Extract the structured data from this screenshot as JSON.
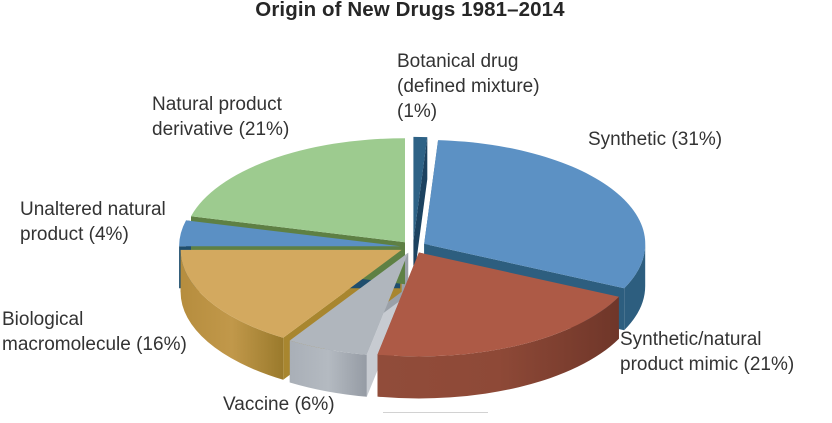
{
  "title": {
    "text": "Origin of New Drugs 1981–2014"
  },
  "chart_data": {
    "type": "pie",
    "title": "Origin of New Drugs 1981–2014",
    "style": "3d-exploded",
    "values_unit": "%",
    "total": 100,
    "start_angle_deg": 0,
    "direction": "clockwise",
    "legend_position": "callout-labels",
    "slices": [
      {
        "key": "botanical",
        "label": "Botanical drug (defined mixture)",
        "value": 1,
        "color": "#2e6286",
        "side": "#16354f",
        "edge_start": "#16354f",
        "edge_end": "#1c4260"
      },
      {
        "key": "synthetic",
        "label": "Synthetic",
        "value": 31,
        "color": "#5c91c4",
        "side": "#2d5e7f",
        "edge_start": "#2d5e7f",
        "edge_end": "#2d5e7f"
      },
      {
        "key": "mimic",
        "label": "Synthetic/natural product mimic",
        "value": 21,
        "color": "#ad5a46",
        "side_gradient": [
          "#914c3a",
          "#8e4937",
          "#6f3629"
        ],
        "side": "#8a4736",
        "edge_start": "#7e4234",
        "edge_end": "#9b5541"
      },
      {
        "key": "vaccine",
        "label": "Vaccine",
        "value": 6,
        "color": "#b0b6bd",
        "side_gradient": [
          "#a9afb7",
          "#b4bac1",
          "#959ba4"
        ],
        "side": "#9aa0a8",
        "edge_start": "#c7cbd1",
        "edge_end": "#9aa0a8"
      },
      {
        "key": "biological",
        "label": "Biological macromolecule",
        "value": 16,
        "color": "#d3a95f",
        "side_gradient": [
          "#b68d3e",
          "#c1984a",
          "#9a7a2c"
        ],
        "side": "#a8862f",
        "edge_start": "#a8862f",
        "edge_end": "#a8862f"
      },
      {
        "key": "unaltered",
        "label": "Unaltered natural product",
        "value": 4,
        "color": "#5b90c4",
        "side": "#1f4e6e",
        "edge_start": "#1f4e6e",
        "edge_end": "#1f4e6e"
      },
      {
        "key": "derivative",
        "label": "Natural product derivative",
        "value": 21,
        "color": "#9dcb8f",
        "side": "#5e8044",
        "edge_start": "#5e8044",
        "edge_end": "#5e8044"
      }
    ]
  },
  "callouts": {
    "botanical": {
      "lines": [
        "Botanical drug",
        "(defined mixture)",
        "(1%)"
      ]
    },
    "synthetic": {
      "lines": [
        "Synthetic (31%)"
      ]
    },
    "mimic": {
      "lines": [
        "Synthetic/natural",
        "product mimic (21%)"
      ]
    },
    "vaccine": {
      "lines": [
        "Vaccine (6%)"
      ]
    },
    "biological": {
      "lines": [
        "Biological",
        "macromolecule (16%)"
      ]
    },
    "unaltered": {
      "lines": [
        "Unaltered natural",
        "product (4%)"
      ]
    },
    "derivative": {
      "lines": [
        "Natural product",
        "derivative (21%)"
      ]
    }
  }
}
